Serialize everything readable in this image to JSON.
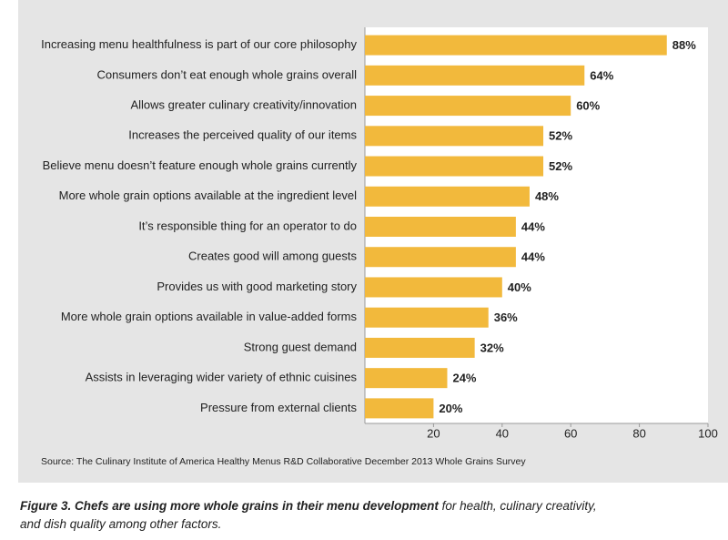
{
  "chart_data": {
    "type": "barh",
    "categories": [
      "Increasing menu healthfulness is part of our core philosophy",
      "Consumers don’t eat enough whole grains overall",
      "Allows greater culinary creativity/innovation",
      "Increases the perceived quality of our items",
      "Believe menu doesn’t feature enough whole grains currently",
      "More whole grain options available at the ingredient level",
      "It’s responsible thing for an operator to do",
      "Creates good will among guests",
      "Provides us with good marketing story",
      "More whole grain options available in value-added forms",
      "Strong guest demand",
      "Assists in leveraging wider variety of ethnic cuisines",
      "Pressure from external clients"
    ],
    "values": [
      88,
      64,
      60,
      52,
      52,
      48,
      44,
      44,
      40,
      36,
      32,
      24,
      20
    ],
    "value_labels": [
      "88%",
      "64%",
      "60%",
      "52%",
      "52%",
      "48%",
      "44%",
      "44%",
      "40%",
      "36%",
      "32%",
      "24%",
      "20%"
    ],
    "color": "#f2b93c",
    "xlim": [
      0,
      100
    ],
    "xticks": [
      20,
      40,
      60,
      80,
      100
    ],
    "grid": false,
    "source": "Source: The Culinary Institute of America Healthy Menus R&D Collaborative December 2013 Whole Grains Survey",
    "caption_bold": "Figure 3. Chefs are using more whole grains in their menu development",
    "caption_rest": "for health, culinary creativity, and dish quality among other factors."
  }
}
